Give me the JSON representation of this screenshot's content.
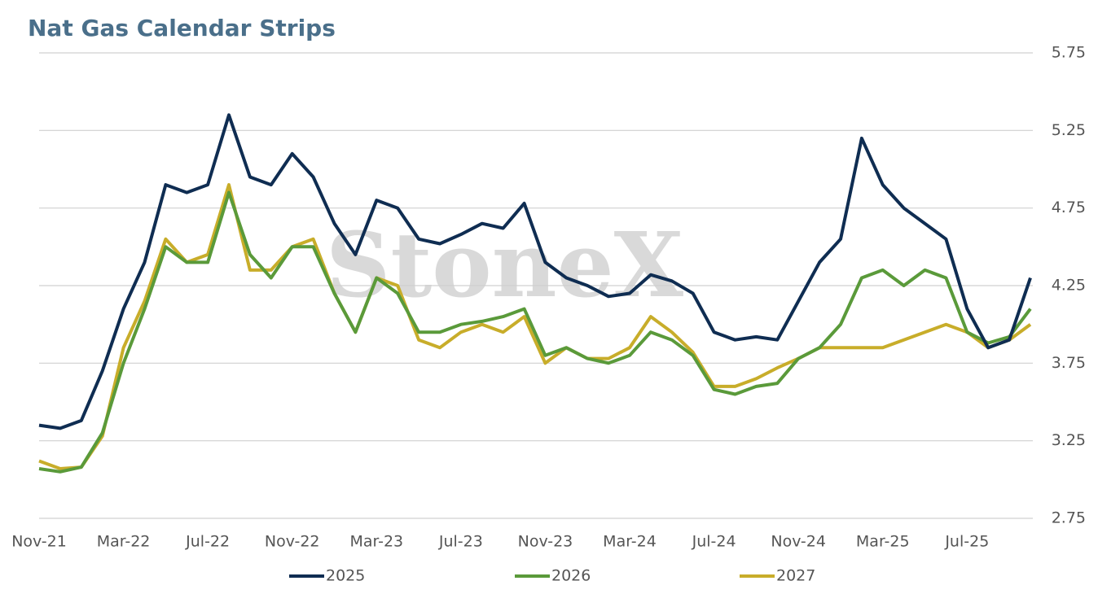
{
  "chart_data": {
    "type": "line",
    "title": "Nat Gas Calendar Strips",
    "watermark": "StoneX",
    "categories": [
      "Nov-21",
      null,
      null,
      null,
      "Mar-22",
      null,
      null,
      null,
      "Jul-22",
      null,
      null,
      null,
      "Nov-22",
      null,
      null,
      null,
      "Mar-23",
      null,
      null,
      null,
      "Jul-23",
      null,
      null,
      null,
      "Nov-23",
      null,
      null,
      null,
      "Mar-24",
      null,
      null,
      null,
      "Jul-24",
      null,
      null,
      null,
      "Nov-24",
      null,
      null,
      null,
      "Mar-25",
      null,
      null,
      null,
      "Jul-25",
      null,
      null,
      null
    ],
    "series": [
      {
        "name": "2025",
        "color": "#0f2d52",
        "values": [
          3.35,
          3.33,
          3.38,
          3.7,
          4.1,
          4.4,
          4.9,
          4.85,
          4.9,
          5.35,
          4.95,
          4.9,
          5.1,
          4.95,
          4.65,
          4.45,
          4.8,
          4.75,
          4.55,
          4.52,
          4.58,
          4.65,
          4.62,
          4.78,
          4.4,
          4.3,
          4.25,
          4.18,
          4.2,
          4.32,
          4.28,
          4.2,
          3.95,
          3.9,
          3.92,
          3.9,
          4.15,
          4.4,
          4.55,
          5.2,
          4.9,
          4.75,
          4.65,
          4.55,
          4.1,
          3.85,
          3.9,
          4.3
        ]
      },
      {
        "name": "2026",
        "color": "#5a9a3a",
        "values": [
          3.07,
          3.05,
          3.08,
          3.3,
          3.75,
          4.1,
          4.5,
          4.4,
          4.4,
          4.85,
          4.45,
          4.3,
          4.5,
          4.5,
          4.2,
          3.95,
          4.3,
          4.2,
          3.95,
          3.95,
          4.0,
          4.02,
          4.05,
          4.1,
          3.8,
          3.85,
          3.78,
          3.75,
          3.8,
          3.95,
          3.9,
          3.8,
          3.58,
          3.55,
          3.6,
          3.62,
          3.78,
          3.85,
          4.0,
          4.3,
          4.35,
          4.25,
          4.35,
          4.3,
          3.95,
          3.88,
          3.92,
          4.1
        ]
      },
      {
        "name": "2027",
        "color": "#c8ad2a",
        "values": [
          3.12,
          3.07,
          3.08,
          3.28,
          3.85,
          4.15,
          4.55,
          4.4,
          4.45,
          4.9,
          4.35,
          4.35,
          4.5,
          4.55,
          4.2,
          3.95,
          4.3,
          4.25,
          3.9,
          3.85,
          3.95,
          4.0,
          3.95,
          4.05,
          3.75,
          3.85,
          3.78,
          3.78,
          3.85,
          4.05,
          3.95,
          3.82,
          3.6,
          3.6,
          3.65,
          3.72,
          3.78,
          3.85,
          3.85,
          3.85,
          3.85,
          3.9,
          3.95,
          4.0,
          3.95,
          3.85,
          3.9,
          4.0
        ]
      }
    ],
    "ylim": [
      2.75,
      5.75
    ],
    "yticks": [
      2.75,
      3.25,
      3.75,
      4.25,
      4.75,
      5.25,
      5.75
    ],
    "grid": true,
    "legend": "bottom"
  }
}
